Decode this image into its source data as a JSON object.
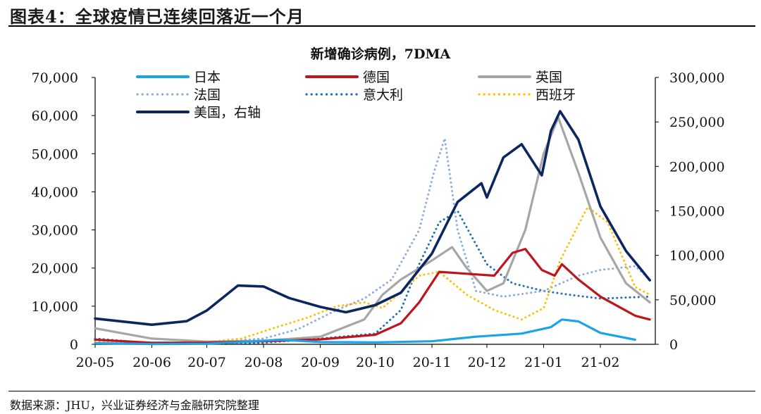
{
  "figure_title": "图表4：全球疫情已连续回落近一个月",
  "source_note": "数据来源：JHU，兴业证券经济与金融研究院整理",
  "colors": {
    "日本": "#1aa3e8",
    "德国": "#c0141c",
    "英国": "#a6a6a6",
    "法国": "#8faadc",
    "意大利": "#1f6fb8",
    "西班牙": "#ffc000",
    "美国": "#0d2660"
  },
  "chart_data": {
    "type": "line",
    "title": "新增确诊病例，7DMA",
    "xlabel": "",
    "ylabel": "",
    "x": [
      "20-05",
      "20-06",
      "20-07",
      "20-08",
      "20-09",
      "20-10",
      "20-11",
      "20-12",
      "21-01",
      "21-02"
    ],
    "x_ticks": [
      "20-05",
      "20-06",
      "20-07",
      "20-08",
      "20-09",
      "20-10",
      "20-11",
      "20-12",
      "21-01",
      "21-02"
    ],
    "ylim_left": [
      0,
      70000
    ],
    "yticks_left": [
      "0",
      "10,000",
      "20,000",
      "30,000",
      "40,000",
      "50,000",
      "60,000",
      "70,000"
    ],
    "ylim_right": [
      0,
      300000
    ],
    "yticks_right": [
      "0",
      "50,000",
      "100,000",
      "150,000",
      "200,000",
      "250,000",
      "300,000"
    ],
    "grid": false,
    "legend_position": "top",
    "series": [
      {
        "name": "日本",
        "axis": "left",
        "style": "solid",
        "color": "#1aa3e8",
        "points": [
          [
            "2020-05-01",
            300
          ],
          [
            "2020-06-01",
            50
          ],
          [
            "2020-07-01",
            150
          ],
          [
            "2020-07-20",
            600
          ],
          [
            "2020-08-10",
            1200
          ],
          [
            "2020-09-01",
            600
          ],
          [
            "2020-10-01",
            500
          ],
          [
            "2020-11-01",
            800
          ],
          [
            "2020-11-25",
            2000
          ],
          [
            "2020-12-20",
            2800
          ],
          [
            "2021-01-05",
            4500
          ],
          [
            "2021-01-11",
            6500
          ],
          [
            "2021-01-20",
            6000
          ],
          [
            "2021-02-01",
            3000
          ],
          [
            "2021-02-20",
            1200
          ]
        ]
      },
      {
        "name": "德国",
        "axis": "left",
        "style": "solid",
        "color": "#c0141c",
        "points": [
          [
            "2020-05-01",
            1200
          ],
          [
            "2020-06-01",
            400
          ],
          [
            "2020-07-01",
            450
          ],
          [
            "2020-08-01",
            800
          ],
          [
            "2020-09-01",
            1300
          ],
          [
            "2020-10-01",
            2500
          ],
          [
            "2020-10-15",
            5500
          ],
          [
            "2020-10-25",
            11000
          ],
          [
            "2020-11-05",
            19000
          ],
          [
            "2020-11-20",
            18500
          ],
          [
            "2020-12-05",
            18000
          ],
          [
            "2020-12-15",
            24000
          ],
          [
            "2020-12-22",
            25000
          ],
          [
            "2020-12-31",
            19500
          ],
          [
            "2021-01-07",
            18000
          ],
          [
            "2021-01-11",
            21000
          ],
          [
            "2021-01-20",
            17000
          ],
          [
            "2021-02-01",
            12500
          ],
          [
            "2021-02-20",
            7500
          ],
          [
            "2021-02-28",
            6500
          ]
        ]
      },
      {
        "name": "英国",
        "axis": "left",
        "style": "solid",
        "color": "#a6a6a6",
        "points": [
          [
            "2020-05-01",
            4200
          ],
          [
            "2020-06-01",
            1500
          ],
          [
            "2020-07-01",
            700
          ],
          [
            "2020-08-01",
            900
          ],
          [
            "2020-09-01",
            2000
          ],
          [
            "2020-09-25",
            6500
          ],
          [
            "2020-10-05",
            13000
          ],
          [
            "2020-10-15",
            17000
          ],
          [
            "2020-11-01",
            22000
          ],
          [
            "2020-11-12",
            25500
          ],
          [
            "2020-11-20",
            20000
          ],
          [
            "2020-12-01",
            14000
          ],
          [
            "2020-12-10",
            16000
          ],
          [
            "2020-12-22",
            30000
          ],
          [
            "2021-01-01",
            50000
          ],
          [
            "2021-01-09",
            59500
          ],
          [
            "2021-01-20",
            45000
          ],
          [
            "2021-02-01",
            28000
          ],
          [
            "2021-02-15",
            16000
          ],
          [
            "2021-02-28",
            11000
          ]
        ]
      },
      {
        "name": "法国",
        "axis": "left",
        "style": "dotted",
        "color": "#8faadc",
        "points": [
          [
            "2020-05-01",
            1000
          ],
          [
            "2020-06-01",
            400
          ],
          [
            "2020-07-01",
            500
          ],
          [
            "2020-08-01",
            1500
          ],
          [
            "2020-08-20",
            4000
          ],
          [
            "2020-09-10",
            9000
          ],
          [
            "2020-09-25",
            12000
          ],
          [
            "2020-10-10",
            17000
          ],
          [
            "2020-10-25",
            30000
          ],
          [
            "2020-11-02",
            45000
          ],
          [
            "2020-11-08",
            54000
          ],
          [
            "2020-11-15",
            30000
          ],
          [
            "2020-11-25",
            14000
          ],
          [
            "2020-12-10",
            12500
          ],
          [
            "2021-01-01",
            14000
          ],
          [
            "2021-01-20",
            18000
          ],
          [
            "2021-02-01",
            19500
          ],
          [
            "2021-02-20",
            20500
          ],
          [
            "2021-02-28",
            17000
          ]
        ]
      },
      {
        "name": "意大利",
        "axis": "left",
        "style": "dotted",
        "color": "#1f6fb8",
        "points": [
          [
            "2020-05-01",
            1500
          ],
          [
            "2020-06-01",
            300
          ],
          [
            "2020-07-01",
            200
          ],
          [
            "2020-08-01",
            400
          ],
          [
            "2020-09-01",
            1500
          ],
          [
            "2020-10-01",
            2800
          ],
          [
            "2020-10-15",
            9000
          ],
          [
            "2020-10-25",
            21000
          ],
          [
            "2020-11-05",
            32000
          ],
          [
            "2020-11-15",
            35000
          ],
          [
            "2020-12-01",
            21000
          ],
          [
            "2020-12-15",
            16000
          ],
          [
            "2021-01-01",
            14000
          ],
          [
            "2021-01-15",
            13000
          ],
          [
            "2021-02-01",
            12000
          ],
          [
            "2021-02-28",
            12500
          ]
        ]
      },
      {
        "name": "西班牙",
        "axis": "left",
        "style": "dotted",
        "color": "#ffc000",
        "points": [
          [
            "2020-05-01",
            500
          ],
          [
            "2020-06-01",
            300
          ],
          [
            "2020-07-01",
            600
          ],
          [
            "2020-07-20",
            1500
          ],
          [
            "2020-08-05",
            4000
          ],
          [
            "2020-08-25",
            7000
          ],
          [
            "2020-09-10",
            10000
          ],
          [
            "2020-09-25",
            11000
          ],
          [
            "2020-10-05",
            9500
          ],
          [
            "2020-10-25",
            18000
          ],
          [
            "2020-11-05",
            19000
          ],
          [
            "2020-11-20",
            13000
          ],
          [
            "2020-12-05",
            9000
          ],
          [
            "2020-12-20",
            6500
          ],
          [
            "2021-01-01",
            9500
          ],
          [
            "2021-01-10",
            22000
          ],
          [
            "2021-01-25",
            36000
          ],
          [
            "2021-02-05",
            32000
          ],
          [
            "2021-02-20",
            15000
          ],
          [
            "2021-02-28",
            13000
          ]
        ]
      },
      {
        "name": "美国，右轴",
        "axis": "right",
        "style": "solid",
        "color": "#0d2660",
        "points": [
          [
            "2020-05-01",
            29000
          ],
          [
            "2020-06-01",
            22000
          ],
          [
            "2020-06-20",
            26000
          ],
          [
            "2020-07-01",
            38000
          ],
          [
            "2020-07-18",
            66000
          ],
          [
            "2020-08-01",
            65000
          ],
          [
            "2020-08-15",
            52000
          ],
          [
            "2020-09-01",
            42000
          ],
          [
            "2020-09-15",
            36000
          ],
          [
            "2020-10-01",
            44000
          ],
          [
            "2020-10-15",
            58000
          ],
          [
            "2020-11-01",
            102000
          ],
          [
            "2020-11-15",
            160000
          ],
          [
            "2020-11-28",
            181000
          ],
          [
            "2020-12-01",
            165000
          ],
          [
            "2020-12-10",
            210000
          ],
          [
            "2020-12-20",
            225000
          ],
          [
            "2020-12-31",
            190000
          ],
          [
            "2021-01-05",
            240000
          ],
          [
            "2021-01-10",
            262000
          ],
          [
            "2021-01-20",
            230000
          ],
          [
            "2021-02-01",
            155000
          ],
          [
            "2021-02-15",
            105000
          ],
          [
            "2021-02-28",
            72000
          ]
        ]
      }
    ]
  }
}
